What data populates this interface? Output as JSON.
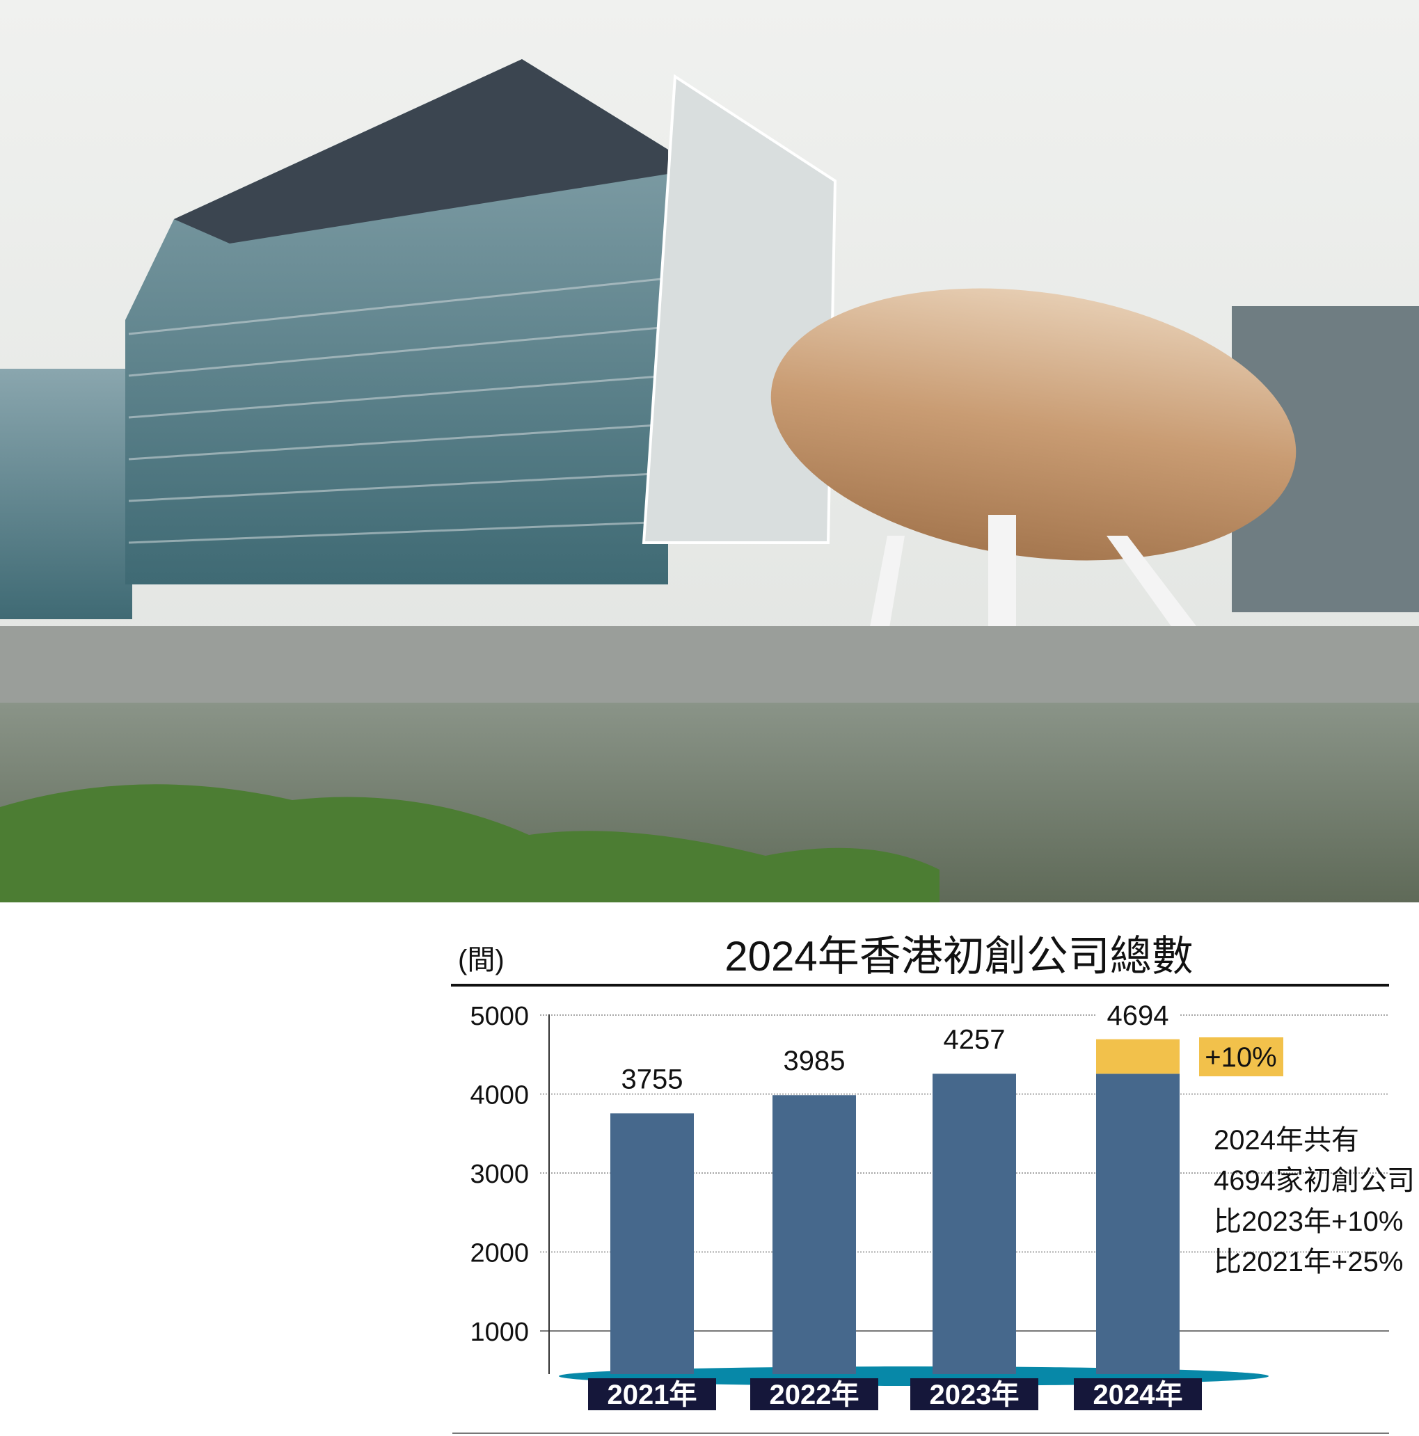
{
  "photo": {
    "subject": "science park building with egg-shaped structure",
    "colors": {
      "sky": "#e9ebe9",
      "egg": "#c9a07a",
      "glass": "#5e8a94",
      "water": "#6e7a6a",
      "plants": "#4f7f34"
    }
  },
  "chart_data": {
    "type": "bar",
    "title": "2024年香港初創公司總數",
    "unit_label": "(間)",
    "categories": [
      "2021年",
      "2022年",
      "2023年",
      "2024年"
    ],
    "values": [
      3755,
      3985,
      4257,
      4694
    ],
    "data_labels": [
      "3755",
      "3985",
      "4257",
      "4694"
    ],
    "increment_2024": {
      "base": 4257,
      "top": 4694,
      "label": "+10%"
    },
    "y_ticks": [
      "5000",
      "4000",
      "3000",
      "2000",
      "1000"
    ],
    "y_tick_values": [
      5000,
      4000,
      3000,
      2000,
      1000
    ],
    "ylim": [
      1000,
      5000
    ],
    "grid": true,
    "annotation_lines": [
      "2024年共有",
      "4694家初創公司",
      "比2023年+10%",
      "比2021年+25%"
    ],
    "colors": {
      "bar": "#46688c",
      "increment": "#f2c14b",
      "category_box": "#15173a",
      "base_ellipse": "#0788a8",
      "grid": "#888888"
    }
  }
}
